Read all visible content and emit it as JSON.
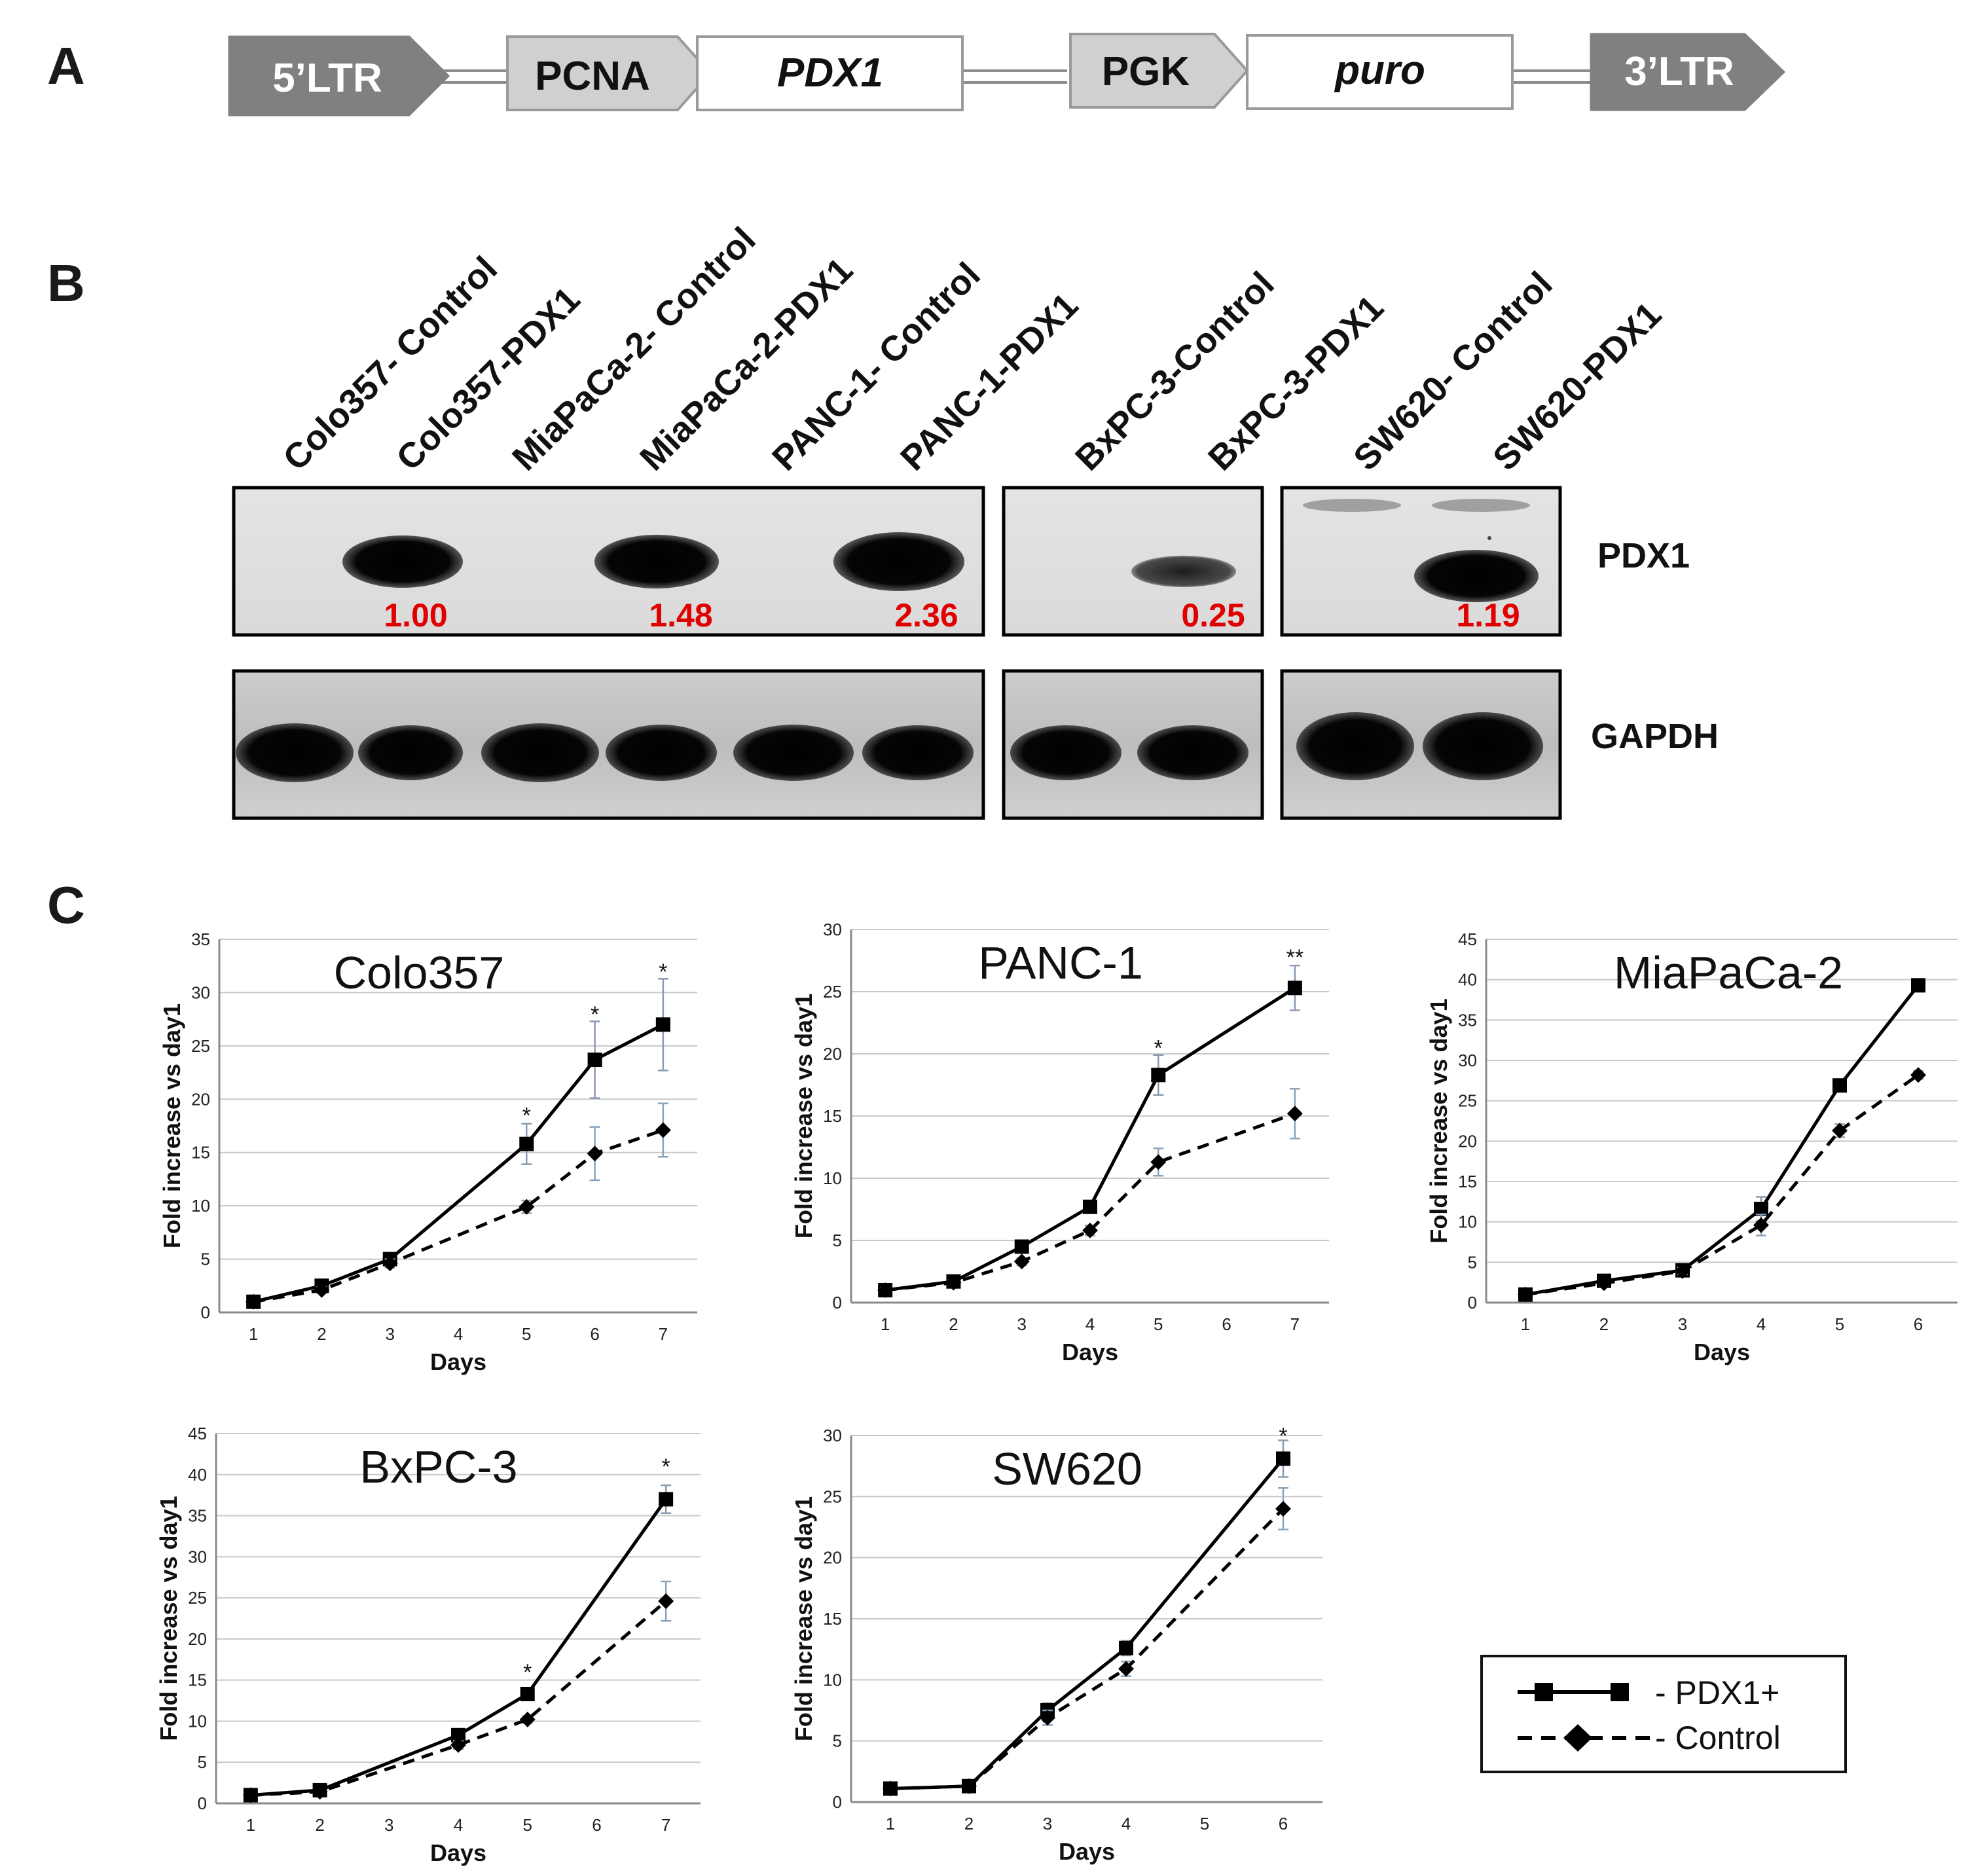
{
  "panels": {
    "a": "A",
    "b": "B",
    "c": "C"
  },
  "construct": {
    "elements": [
      "5’LTR",
      "PCNA",
      "PDX1",
      "PGK",
      "puro",
      "3’LTR"
    ]
  },
  "blot": {
    "lanes": [
      "Colo357- Control",
      "Colo357-PDX1",
      "MiaPaCa-2- Control",
      "MiaPaCa-2-PDX1",
      "PANC-1- Control",
      "PANC-1-PDX1",
      "BxPC-3-Control",
      "BxPC-3-PDX1",
      "SW620- Control",
      "SW620-PDX1"
    ],
    "proteins": [
      "PDX1",
      "GAPDH"
    ],
    "quantification": [
      "1.00",
      "1.48",
      "2.36",
      "0.25",
      "1.19"
    ],
    "highlight_color": "#e00000"
  },
  "legend": {
    "pdx1": "- PDX1+",
    "control": "- Control"
  },
  "chart_data": [
    {
      "type": "line",
      "title": "Colo357",
      "xlabel": "Days",
      "ylabel": "Fold increase vs day1",
      "x": [
        1,
        2,
        3,
        4,
        5,
        6,
        7
      ],
      "ylim": [
        0,
        35
      ],
      "ytick_step": 5,
      "grid": true,
      "series": [
        {
          "name": "- PDX1+",
          "marker": "square",
          "dash": false,
          "x": [
            1,
            2,
            3,
            5,
            6,
            7
          ],
          "values": [
            1,
            2.5,
            5,
            15.8,
            23.7,
            27
          ],
          "errors": [
            0.3,
            0.4,
            0.5,
            1.9,
            3.6,
            4.3
          ]
        },
        {
          "name": "- Control",
          "marker": "diamond",
          "dash": true,
          "x": [
            1,
            2,
            3,
            5,
            6,
            7
          ],
          "values": [
            1,
            2.1,
            4.6,
            9.9,
            14.9,
            17.1
          ],
          "errors": [
            0.2,
            0.3,
            0.4,
            0.6,
            2.5,
            2.5
          ]
        }
      ],
      "annotations": [
        {
          "x": 5,
          "y": 18.5,
          "text": "*"
        },
        {
          "x": 6,
          "y": 28,
          "text": "*"
        },
        {
          "x": 7,
          "y": 32,
          "text": "*"
        }
      ]
    },
    {
      "type": "line",
      "title": "PANC-1",
      "xlabel": "Days",
      "ylabel": "Fold increase vs day1",
      "x": [
        1,
        2,
        3,
        4,
        5,
        6,
        7
      ],
      "ylim": [
        0,
        30
      ],
      "ytick_step": 5,
      "grid": true,
      "series": [
        {
          "name": "- PDX1+",
          "marker": "square",
          "dash": false,
          "x": [
            1,
            2,
            3,
            4,
            5,
            7
          ],
          "values": [
            1,
            1.7,
            4.5,
            7.7,
            18.3,
            25.3
          ],
          "errors": [
            0.2,
            0.3,
            0.3,
            0.4,
            1.6,
            1.8
          ]
        },
        {
          "name": "- Control",
          "marker": "diamond",
          "dash": true,
          "x": [
            1,
            2,
            3,
            4,
            5,
            7
          ],
          "values": [
            1,
            1.6,
            3.3,
            5.8,
            11.3,
            15.2
          ],
          "errors": [
            0.2,
            0.2,
            0.3,
            0.4,
            1.1,
            2.0
          ]
        }
      ],
      "annotations": [
        {
          "x": 5,
          "y": 20.5,
          "text": "*"
        },
        {
          "x": 7,
          "y": 27.8,
          "text": "**"
        }
      ]
    },
    {
      "type": "line",
      "title": "MiaPaCa-2",
      "xlabel": "Days",
      "ylabel": "Fold increase vs day1",
      "x": [
        1,
        2,
        3,
        4,
        5,
        6
      ],
      "ylim": [
        0,
        45
      ],
      "ytick_step": 5,
      "grid": true,
      "series": [
        {
          "name": "- PDX1+",
          "marker": "square",
          "dash": false,
          "x": [
            1,
            2,
            3,
            4,
            5,
            6
          ],
          "values": [
            1,
            2.7,
            4,
            11.6,
            26.9,
            39.3
          ],
          "errors": [
            0.2,
            0.4,
            0.5,
            1.5,
            0.6,
            0.6
          ]
        },
        {
          "name": "- Control",
          "marker": "diamond",
          "dash": true,
          "x": [
            1,
            2,
            3,
            4,
            5,
            6
          ],
          "values": [
            1,
            2.4,
            3.9,
            9.6,
            21.3,
            28.2
          ],
          "errors": [
            0.2,
            0.3,
            0.4,
            1.3,
            0.8,
            0.5
          ]
        }
      ],
      "annotations": []
    },
    {
      "type": "line",
      "title": "BxPC-3",
      "xlabel": "Days",
      "ylabel": "Fold increase vs day1",
      "x": [
        1,
        2,
        3,
        4,
        5,
        6,
        7
      ],
      "ylim": [
        0,
        45
      ],
      "ytick_step": 5,
      "grid": true,
      "series": [
        {
          "name": "- PDX1+",
          "marker": "square",
          "dash": false,
          "x": [
            1,
            2,
            4,
            5,
            7
          ],
          "values": [
            1,
            1.6,
            8.3,
            13.3,
            37
          ],
          "errors": [
            0.2,
            0.3,
            0.6,
            0.5,
            1.7
          ]
        },
        {
          "name": "- Control",
          "marker": "diamond",
          "dash": true,
          "x": [
            1,
            2,
            4,
            5,
            7
          ],
          "values": [
            1,
            1.4,
            7.1,
            10.2,
            24.6
          ],
          "errors": [
            0.2,
            0.2,
            0.5,
            0.4,
            2.4
          ]
        }
      ],
      "annotations": [
        {
          "x": 5,
          "y": 16,
          "text": "*"
        },
        {
          "x": 7,
          "y": 41,
          "text": "*"
        }
      ]
    },
    {
      "type": "line",
      "title": "SW620",
      "xlabel": "Days",
      "ylabel": "Fold increase vs day1",
      "x": [
        1,
        2,
        3,
        4,
        5,
        6
      ],
      "ylim": [
        0,
        30
      ],
      "ytick_step": 5,
      "grid": true,
      "series": [
        {
          "name": "- PDX1+",
          "marker": "square",
          "dash": false,
          "x": [
            1,
            2,
            3,
            4,
            6
          ],
          "values": [
            1.1,
            1.3,
            7.5,
            12.6,
            28.1
          ],
          "errors": [
            0.1,
            0.1,
            0.6,
            0.6,
            1.5
          ]
        },
        {
          "name": "- Control",
          "marker": "diamond",
          "dash": true,
          "x": [
            1,
            2,
            3,
            4,
            6
          ],
          "values": [
            1.1,
            1.3,
            6.9,
            10.9,
            24
          ],
          "errors": [
            0.1,
            0.1,
            0.6,
            0.6,
            1.7
          ]
        }
      ],
      "annotations": [
        {
          "x": 6,
          "y": 30,
          "text": "*"
        }
      ]
    }
  ]
}
